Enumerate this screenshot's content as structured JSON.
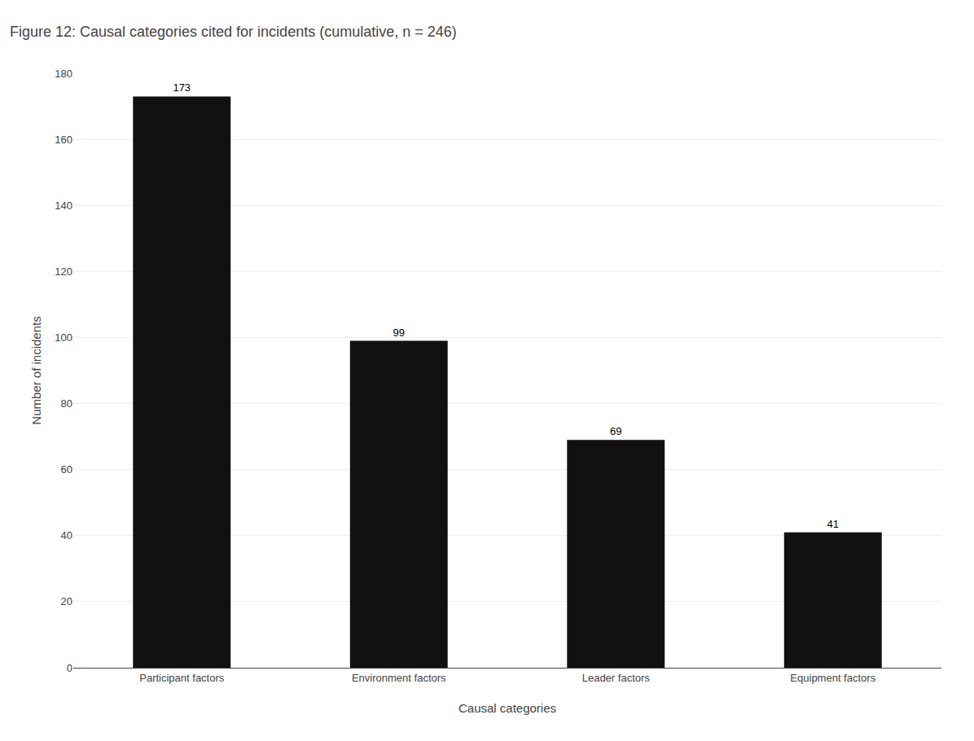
{
  "chart_data": {
    "type": "bar",
    "title": "Figure 12: Causal categories cited for incidents (cumulative, n = 246)",
    "categories": [
      "Participant factors",
      "Environment factors",
      "Leader factors",
      "Equipment factors"
    ],
    "values": [
      173,
      99,
      69,
      41
    ],
    "color": "#111111",
    "xlabel": "Causal categories",
    "ylabel": "Number of incidents",
    "ylim": [
      0,
      180
    ],
    "yticks": [
      0,
      20,
      40,
      60,
      80,
      100,
      120,
      140,
      160,
      180
    ],
    "grid": true,
    "data_labels": true
  }
}
